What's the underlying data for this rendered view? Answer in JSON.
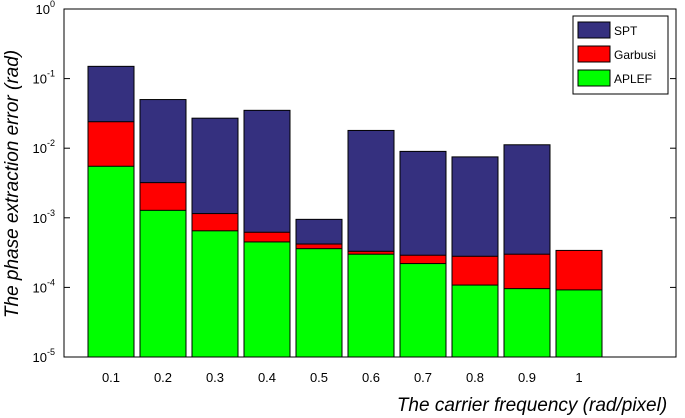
{
  "chart_data": {
    "type": "bar",
    "scale_y": "log",
    "ylim": [
      1e-05,
      1
    ],
    "yticks": [
      {
        "base": "10",
        "exp": "-5"
      },
      {
        "base": "10",
        "exp": "-4"
      },
      {
        "base": "10",
        "exp": "-3"
      },
      {
        "base": "10",
        "exp": "-2"
      },
      {
        "base": "10",
        "exp": "-1"
      },
      {
        "base": "10",
        "exp": "0"
      }
    ],
    "categories": [
      "0.1",
      "0.2",
      "0.3",
      "0.4",
      "0.5",
      "0.6",
      "0.7",
      "0.8",
      "0.9",
      "1"
    ],
    "series": [
      {
        "name": "SPT",
        "color": "#35307f",
        "values": [
          0.15,
          0.05,
          0.027,
          0.035,
          0.00095,
          0.018,
          0.009,
          0.0075,
          0.0112,
          0.00024
        ]
      },
      {
        "name": "Garbusi",
        "color": "#ff0000",
        "values": [
          0.024,
          0.0032,
          0.00115,
          0.00062,
          0.00042,
          0.00033,
          0.00029,
          0.00028,
          0.0003,
          0.00034
        ]
      },
      {
        "name": "APLEF",
        "color": "#00ff00",
        "values": [
          0.0055,
          0.00128,
          0.00065,
          0.00045,
          0.00036,
          0.0003,
          0.00022,
          0.000108,
          9.6e-05,
          9.2e-05
        ]
      }
    ],
    "xlabel": "The carrier frequency    (rad/pixel)",
    "ylabel": "The phase extraction error  (rad)",
    "legend": {
      "position": "top-right",
      "entries": [
        "SPT",
        "Garbusi",
        "APLEF"
      ]
    },
    "grid": false
  }
}
